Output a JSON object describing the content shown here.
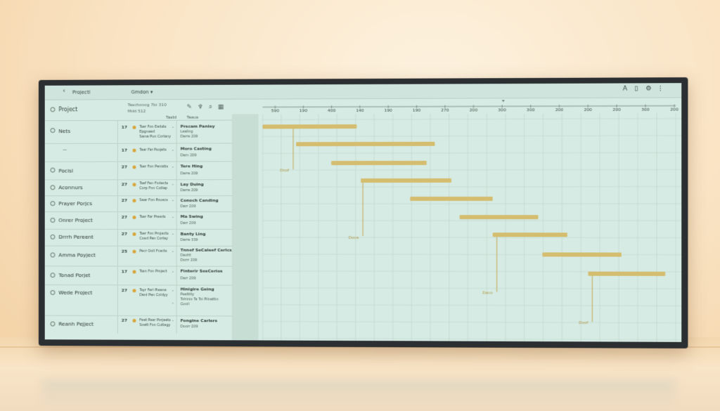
{
  "topbar": {
    "title": "Projectl",
    "menu": "Gmdon ▾",
    "icons": [
      "font-icon",
      "document-icon",
      "settings-icon",
      "more-icon"
    ]
  },
  "header": {
    "project_label": "Project",
    "meta_line1": "Teschooog 7bi 310",
    "meta_line2": "Mdd 512",
    "col_tasks": "Tastd",
    "col_status": "Teaus"
  },
  "projects": [
    {
      "name": "Nets",
      "num": "17",
      "sub1": "Tser Fon Eedsts",
      "sub2": "Sanw Pun Corlany",
      "extra": "Epgnaed",
      "task": "Prscam Paniey",
      "task2": "Lealing",
      "task3": "Darre 209"
    },
    {
      "name": "",
      "mark": "—",
      "num": "17",
      "sub1": "Tear Far Psojets",
      "sub2": "",
      "task": "Moro Casting",
      "task2": "Darn 209"
    },
    {
      "name": "Pocisl",
      "num": "27",
      "sub1": "Tser Fon Penistis",
      "sub2": "",
      "task": "Tere Hing",
      "task2": "Darre 209"
    },
    {
      "name": "Aconnurs",
      "num": "27",
      "sub1": "Tsef Fen Fodects",
      "sub2": "Corp Fon Cutlap",
      "task": "Lay Duing",
      "task2": "Darre 209"
    },
    {
      "name": "Prayer Porjcs",
      "num": "27",
      "sub1": "Sear Fon Pouecs",
      "sub2": "",
      "task": "Conoch Canding",
      "task2": "Darr 209"
    },
    {
      "name": "Onrer Project",
      "num": "27",
      "sub1": "Tser Far Preeds",
      "sub2": "",
      "task": "Ma Swing",
      "task2": "Darr 209"
    },
    {
      "name": "Drrrh Pereent",
      "num": "27",
      "sub1": "Tser Fon Projects",
      "sub2": "Coed Pan Corlay",
      "task": "Banty Ling",
      "task2": "Darre 339"
    },
    {
      "name": "Amma Poyject",
      "num": "25",
      "sub1": "Pecr Ooll Fcacts",
      "sub2": "",
      "task": "Tnnef SeCaleef Cerlcs",
      "task2": "Daoht",
      "task3": "Dorrr 209"
    },
    {
      "name": "Tonad Porjet",
      "num": "17",
      "sub1": "Tssn Fon Project",
      "sub2": "",
      "task": "Finterir SosCerios",
      "task2": "Darr 209"
    },
    {
      "name": "Wede Project",
      "num": "27",
      "sub1": "Tsyr Ferl Pieene",
      "sub2": "Denl Pen Coldyy",
      "task": "Hinigire Geing",
      "task2": "Pseitlity",
      "task3": "Tohinio Ta Toi Pilnettin",
      "task4": "Gooll"
    },
    {
      "name": "Reanh Pejject",
      "num": "27",
      "sub1": "Feet Paer Porjeets",
      "sub2": "Soett Fon Cutlagy",
      "task": "Fongine Carlers",
      "task2": "Doorr 209"
    }
  ],
  "timeline": {
    "ticks": [
      "590",
      "190",
      "400",
      "140",
      "190",
      "190",
      "270",
      "200",
      "300",
      "300",
      "200",
      "200",
      "200",
      "300",
      "200"
    ],
    "bar_color": "#d4bd6f",
    "grid_color": "#c3d9d0"
  },
  "gantt_bars": [
    {
      "start": 0.0,
      "end": 0.23
    },
    {
      "start": 0.082,
      "end": 0.42
    },
    {
      "start": 0.168,
      "end": 0.4
    },
    {
      "start": 0.24,
      "end": 0.46
    },
    {
      "start": 0.36,
      "end": 0.56
    },
    {
      "start": 0.48,
      "end": 0.67
    },
    {
      "start": 0.56,
      "end": 0.74
    },
    {
      "start": 0.68,
      "end": 0.87
    },
    {
      "start": 0.79,
      "end": 0.975
    }
  ],
  "milestones": [
    {
      "label": "Doof",
      "x": 0.075
    },
    {
      "label": "Dooe",
      "x": 0.245
    },
    {
      "label": "Dano",
      "x": 0.57
    },
    {
      "label": "Doof",
      "x": 0.8
    }
  ]
}
